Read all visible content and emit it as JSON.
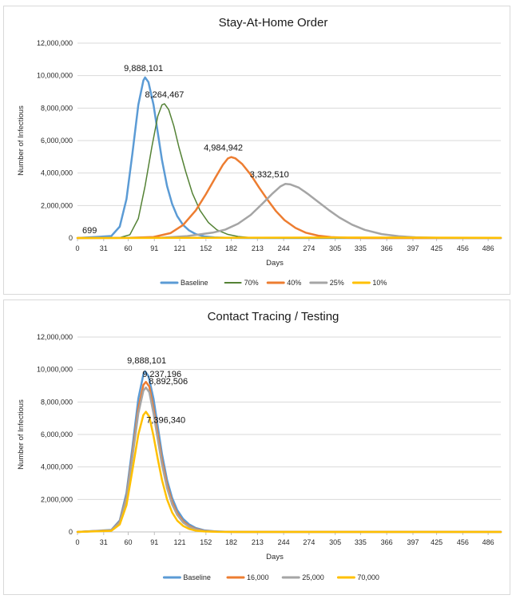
{
  "chart_data": [
    {
      "type": "line",
      "title": "Stay-At-Home Order",
      "xlabel": "Days",
      "ylabel": "Number of Infectious",
      "ylim": [
        0,
        12000000
      ],
      "yticks": [
        0,
        2000000,
        4000000,
        6000000,
        8000000,
        10000000,
        12000000
      ],
      "ytick_labels": [
        "0",
        "2,000,000",
        "4,000,000",
        "6,000,000",
        "8,000,000",
        "10,000,000",
        "12,000,000"
      ],
      "xlim": [
        0,
        501
      ],
      "xticks": [
        0,
        31,
        60,
        91,
        121,
        152,
        182,
        213,
        244,
        274,
        305,
        335,
        366,
        397,
        425,
        456,
        486
      ],
      "grid": "horizontal",
      "legend_position": "bottom",
      "series": [
        {
          "name": "Baseline",
          "color": "#5B9BD5",
          "width": 2.5,
          "points": [
            [
              0,
              699
            ],
            [
              40,
              120000
            ],
            [
              50,
              700000
            ],
            [
              58,
              2400000
            ],
            [
              65,
              5200000
            ],
            [
              72,
              8200000
            ],
            [
              78,
              9700000
            ],
            [
              80,
              9888101
            ],
            [
              84,
              9600000
            ],
            [
              90,
              8200000
            ],
            [
              95,
              6500000
            ],
            [
              100,
              4800000
            ],
            [
              106,
              3200000
            ],
            [
              112,
              2100000
            ],
            [
              118,
              1350000
            ],
            [
              125,
              800000
            ],
            [
              132,
              470000
            ],
            [
              140,
              240000
            ],
            [
              150,
              100000
            ],
            [
              162,
              35000
            ],
            [
              175,
              10000
            ],
            [
              200,
              1500
            ],
            [
              240,
              0
            ],
            [
              501,
              0
            ]
          ]
        },
        {
          "name": "70%",
          "color": "#548235",
          "width": 1.5,
          "points": [
            [
              0,
              699
            ],
            [
              50,
              25000
            ],
            [
              62,
              200000
            ],
            [
              72,
              1200000
            ],
            [
              80,
              3200000
            ],
            [
              88,
              5600000
            ],
            [
              95,
              7500000
            ],
            [
              100,
              8200000
            ],
            [
              103,
              8264467
            ],
            [
              108,
              7900000
            ],
            [
              114,
              6900000
            ],
            [
              120,
              5600000
            ],
            [
              128,
              4100000
            ],
            [
              136,
              2750000
            ],
            [
              145,
              1700000
            ],
            [
              155,
              950000
            ],
            [
              165,
              500000
            ],
            [
              178,
              220000
            ],
            [
              190,
              90000
            ],
            [
              205,
              25000
            ],
            [
              225,
              5000
            ],
            [
              260,
              0
            ],
            [
              501,
              0
            ]
          ]
        },
        {
          "name": "40%",
          "color": "#ED7D31",
          "width": 2.5,
          "points": [
            [
              0,
              699
            ],
            [
              60,
              10000
            ],
            [
              90,
              60000
            ],
            [
              110,
              300000
            ],
            [
              125,
              800000
            ],
            [
              140,
              1700000
            ],
            [
              152,
              2700000
            ],
            [
              163,
              3700000
            ],
            [
              172,
              4500000
            ],
            [
              178,
              4900000
            ],
            [
              182,
              4984942
            ],
            [
              187,
              4900000
            ],
            [
              195,
              4550000
            ],
            [
              205,
              3900000
            ],
            [
              215,
              3100000
            ],
            [
              225,
              2350000
            ],
            [
              235,
              1650000
            ],
            [
              245,
              1100000
            ],
            [
              258,
              620000
            ],
            [
              270,
              330000
            ],
            [
              285,
              140000
            ],
            [
              300,
              55000
            ],
            [
              320,
              15000
            ],
            [
              350,
              2000
            ],
            [
              400,
              0
            ],
            [
              501,
              0
            ]
          ]
        },
        {
          "name": "25%",
          "color": "#A5A5A5",
          "width": 2.5,
          "points": [
            [
              0,
              699
            ],
            [
              100,
              20000
            ],
            [
              130,
              120000
            ],
            [
              160,
              330000
            ],
            [
              175,
              520000
            ],
            [
              190,
              880000
            ],
            [
              205,
              1420000
            ],
            [
              218,
              2070000
            ],
            [
              230,
              2700000
            ],
            [
              240,
              3170000
            ],
            [
              246,
              3332510
            ],
            [
              252,
              3300000
            ],
            [
              262,
              3100000
            ],
            [
              272,
              2740000
            ],
            [
              285,
              2220000
            ],
            [
              298,
              1700000
            ],
            [
              310,
              1260000
            ],
            [
              325,
              820000
            ],
            [
              340,
              500000
            ],
            [
              360,
              240000
            ],
            [
              380,
              110000
            ],
            [
              400,
              45000
            ],
            [
              425,
              15000
            ],
            [
              450,
              3000
            ],
            [
              480,
              0
            ],
            [
              501,
              0
            ]
          ]
        },
        {
          "name": "10%",
          "color": "#FFC000",
          "width": 2.5,
          "points": [
            [
              0,
              699
            ],
            [
              100,
              4000
            ],
            [
              200,
              18000
            ],
            [
              300,
              28000
            ],
            [
              400,
              22000
            ],
            [
              501,
              12000
            ]
          ]
        }
      ],
      "annotations": [
        {
          "text": "699",
          "x": 0,
          "y": 699
        },
        {
          "text": "9,888,101",
          "x": 80,
          "y": 9888101
        },
        {
          "text": "8,264,467",
          "x": 103,
          "y": 8264467
        },
        {
          "text": "4,984,942",
          "x": 182,
          "y": 4984942
        },
        {
          "text": "3,332,510",
          "x": 246,
          "y": 3332510
        }
      ]
    },
    {
      "type": "line",
      "title": "Contact Tracing / Testing",
      "xlabel": "Days",
      "ylabel": "Number of Infectious",
      "ylim": [
        0,
        12000000
      ],
      "yticks": [
        0,
        2000000,
        4000000,
        6000000,
        8000000,
        10000000,
        12000000
      ],
      "ytick_labels": [
        "0",
        "2,000,000",
        "4,000,000",
        "6,000,000",
        "8,000,000",
        "10,000,000",
        "12,000,000"
      ],
      "xlim": [
        0,
        501
      ],
      "xticks": [
        0,
        31,
        60,
        91,
        121,
        152,
        182,
        213,
        244,
        274,
        305,
        335,
        366,
        397,
        425,
        456,
        486
      ],
      "grid": "horizontal",
      "legend_position": "bottom",
      "series": [
        {
          "name": "Baseline",
          "color": "#5B9BD5",
          "width": 2.5,
          "points": [
            [
              0,
              699
            ],
            [
              40,
              120000
            ],
            [
              50,
              700000
            ],
            [
              58,
              2400000
            ],
            [
              65,
              5200000
            ],
            [
              72,
              8200000
            ],
            [
              78,
              9700000
            ],
            [
              80,
              9888101
            ],
            [
              84,
              9600000
            ],
            [
              90,
              8200000
            ],
            [
              95,
              6500000
            ],
            [
              100,
              4800000
            ],
            [
              106,
              3200000
            ],
            [
              112,
              2100000
            ],
            [
              118,
              1350000
            ],
            [
              125,
              800000
            ],
            [
              132,
              470000
            ],
            [
              140,
              240000
            ],
            [
              150,
              100000
            ],
            [
              162,
              35000
            ],
            [
              175,
              10000
            ],
            [
              200,
              1500
            ],
            [
              240,
              0
            ],
            [
              501,
              0
            ]
          ]
        },
        {
          "name": "16,000",
          "color": "#ED7D31",
          "width": 2.5,
          "points": [
            [
              0,
              699
            ],
            [
              40,
              100000
            ],
            [
              50,
              620000
            ],
            [
              58,
              2150000
            ],
            [
              65,
              4800000
            ],
            [
              72,
              7600000
            ],
            [
              78,
              9050000
            ],
            [
              81,
              9237196
            ],
            [
              85,
              8950000
            ],
            [
              90,
              7600000
            ],
            [
              95,
              6000000
            ],
            [
              100,
              4400000
            ],
            [
              106,
              2900000
            ],
            [
              112,
              1850000
            ],
            [
              118,
              1150000
            ],
            [
              125,
              650000
            ],
            [
              132,
              370000
            ],
            [
              140,
              180000
            ],
            [
              150,
              70000
            ],
            [
              165,
              20000
            ],
            [
              190,
              2000
            ],
            [
              230,
              0
            ],
            [
              501,
              0
            ]
          ]
        },
        {
          "name": "25,000",
          "color": "#A5A5A5",
          "width": 2.5,
          "points": [
            [
              0,
              699
            ],
            [
              40,
              90000
            ],
            [
              50,
              580000
            ],
            [
              58,
              2050000
            ],
            [
              65,
              4600000
            ],
            [
              72,
              7300000
            ],
            [
              78,
              8700000
            ],
            [
              81,
              8892506
            ],
            [
              85,
              8600000
            ],
            [
              90,
              7300000
            ],
            [
              95,
              5700000
            ],
            [
              100,
              4150000
            ],
            [
              106,
              2700000
            ],
            [
              112,
              1700000
            ],
            [
              118,
              1050000
            ],
            [
              125,
              580000
            ],
            [
              132,
              320000
            ],
            [
              140,
              150000
            ],
            [
              150,
              55000
            ],
            [
              165,
              15000
            ],
            [
              190,
              1500
            ],
            [
              230,
              0
            ],
            [
              501,
              0
            ]
          ]
        },
        {
          "name": "70,000",
          "color": "#FFC000",
          "width": 2.5,
          "points": [
            [
              0,
              699
            ],
            [
              40,
              70000
            ],
            [
              50,
              460000
            ],
            [
              58,
              1650000
            ],
            [
              65,
              3800000
            ],
            [
              72,
              6000000
            ],
            [
              78,
              7200000
            ],
            [
              81,
              7396340
            ],
            [
              85,
              7100000
            ],
            [
              90,
              5900000
            ],
            [
              95,
              4500000
            ],
            [
              100,
              3200000
            ],
            [
              106,
              2000000
            ],
            [
              112,
              1200000
            ],
            [
              118,
              700000
            ],
            [
              125,
              370000
            ],
            [
              132,
              190000
            ],
            [
              140,
              80000
            ],
            [
              150,
              28000
            ],
            [
              165,
              6000
            ],
            [
              190,
              500
            ],
            [
              230,
              0
            ],
            [
              501,
              0
            ]
          ]
        }
      ],
      "annotations": [
        {
          "text": "9,888,101",
          "x": 80,
          "y": 9888101
        },
        {
          "text": "9,237,196",
          "x": 81,
          "y": 9237196
        },
        {
          "text": "8,892,506",
          "x": 81,
          "y": 8892506
        },
        {
          "text": "7,396,340",
          "x": 81,
          "y": 7396340
        }
      ]
    }
  ]
}
